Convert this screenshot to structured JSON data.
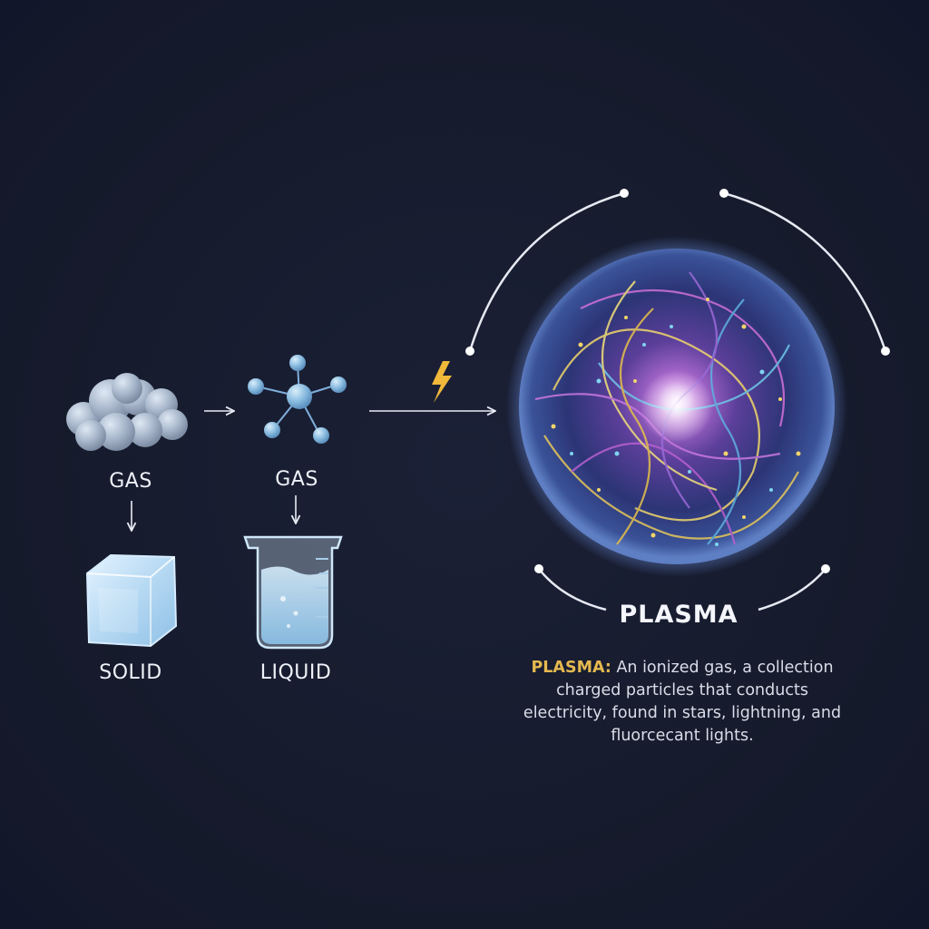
{
  "diagram": {
    "top_left_label": "GAS",
    "top_middle_label": "GAS",
    "solid_label": "SOLID",
    "liquid_label": "LIQUID",
    "plasma_label": "PLASMA",
    "description": {
      "term": "PLASMA:",
      "line1": "An ionized gas, a collection",
      "line2": "charged particles that conducts",
      "line3": "electricity, found in stars, lightning, and",
      "line4": "fluorcecant lights."
    }
  },
  "colors": {
    "background": "#161b2e",
    "accent_term": "#e5b94f",
    "lightning": "#f0b93a"
  },
  "icons": [
    "cloud-icon",
    "molecule-icon",
    "ice-cube-icon",
    "beaker-icon",
    "lightning-icon",
    "plasma-sphere-icon"
  ]
}
